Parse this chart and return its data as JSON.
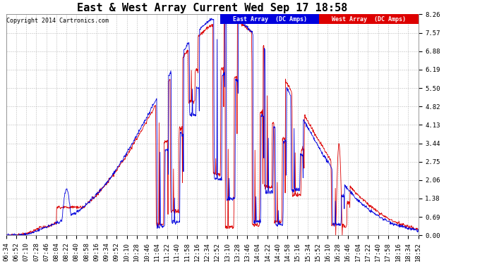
{
  "title": "East & West Array Current Wed Sep 17 18:58",
  "copyright": "Copyright 2014 Cartronics.com",
  "legend_east": "East Array  (DC Amps)",
  "legend_west": "West Array  (DC Amps)",
  "ylabel_values": [
    0.0,
    0.69,
    1.38,
    2.06,
    2.75,
    3.44,
    4.13,
    4.82,
    5.5,
    6.19,
    6.88,
    7.57,
    8.26
  ],
  "ylim": [
    0,
    8.26
  ],
  "background_color": "#ffffff",
  "grid_color": "#bbbbbb",
  "east_color": "#0000dd",
  "west_color": "#dd0000",
  "title_fontsize": 11,
  "tick_label_fontsize": 6.5,
  "x_tick_labels": [
    "06:34",
    "06:52",
    "07:10",
    "07:28",
    "07:46",
    "08:04",
    "08:22",
    "08:40",
    "08:58",
    "09:16",
    "09:34",
    "09:52",
    "10:10",
    "10:28",
    "10:46",
    "11:04",
    "11:22",
    "11:40",
    "11:58",
    "12:16",
    "12:34",
    "12:52",
    "13:10",
    "13:28",
    "13:46",
    "14:04",
    "14:22",
    "14:40",
    "14:58",
    "15:16",
    "15:34",
    "15:52",
    "16:10",
    "16:28",
    "16:46",
    "17:04",
    "17:22",
    "17:40",
    "17:58",
    "18:16",
    "18:34",
    "18:52"
  ],
  "figsize": [
    6.9,
    3.75
  ],
  "dpi": 100
}
